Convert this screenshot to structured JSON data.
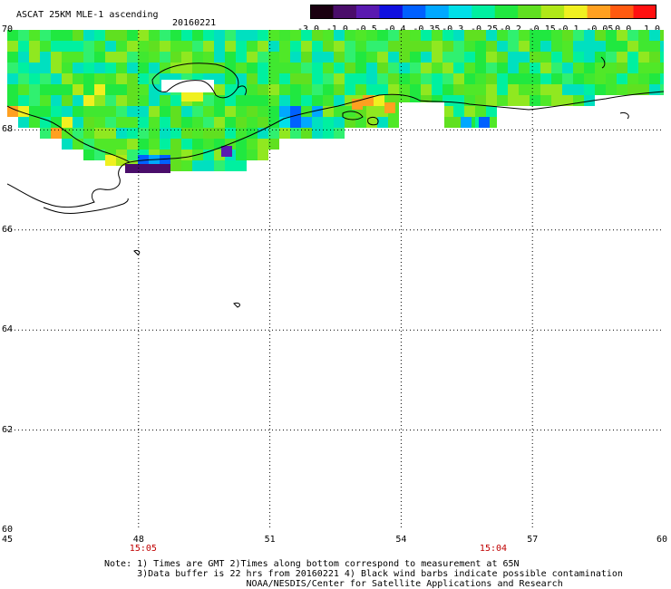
{
  "header": {
    "title": "ASCAT 25KM MLE-1 ascending",
    "date": "20160221"
  },
  "colorbar": {
    "labels": [
      "-3.0",
      "-1.0",
      "-0.5",
      "-0.4",
      "-0.35",
      "-0.3",
      "-0.25",
      "-0.2",
      "-0.15",
      "-0.1",
      "-0.05",
      "0.0",
      "1.0"
    ],
    "colors": [
      "#1a0010",
      "#4a0d6a",
      "#5a1ab0",
      "#1010e0",
      "#0060ff",
      "#00a8ff",
      "#00e0e8",
      "#00f0a0",
      "#20e840",
      "#60e020",
      "#b0e818",
      "#f0f020",
      "#ffa020",
      "#ff5a10",
      "#ff1010"
    ]
  },
  "map": {
    "lat_range": [
      60,
      70
    ],
    "lon_range": [
      45,
      60
    ],
    "lat_ticks": [
      "70",
      "68",
      "66",
      "64",
      "62",
      "60"
    ],
    "lon_ticks": [
      "45",
      "48",
      "51",
      "54",
      "57",
      "60"
    ],
    "time_labels": [
      {
        "lon": 48,
        "text": "15:05"
      },
      {
        "lon": 56,
        "text": "15:04"
      }
    ],
    "swath_colors": [
      "#20e840",
      "#40e830",
      "#60e020",
      "#00f0a0",
      "#30f070",
      "#90e820",
      "#00e0c0",
      "#50e828"
    ]
  },
  "notes": {
    "line1": "Note: 1) Times are GMT 2)Times along bottom correspond to measurement at 65N",
    "line2": "      3)Data buffer is 22 hrs from 20160221 4) Black wind barbs indicate possible contamination",
    "line3": "                          NOAA/NESDIS/Center for Satellite Applications and Research"
  }
}
